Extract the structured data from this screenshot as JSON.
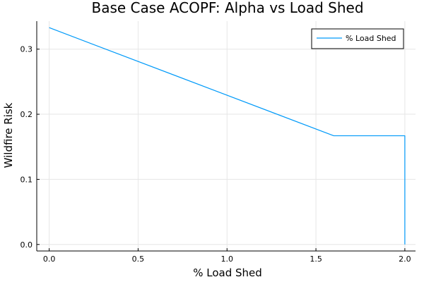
{
  "chart_data": {
    "type": "line",
    "title": "Base Case ACOPF: Alpha vs Load Shed",
    "xlabel": "% Load Shed",
    "ylabel": "Wildfire Risk",
    "xlim": [
      -0.07,
      2.06
    ],
    "ylim": [
      -0.01,
      0.343
    ],
    "xticks": [
      0.0,
      0.5,
      1.0,
      1.5,
      2.0
    ],
    "xtick_labels": [
      "0.0",
      "0.5",
      "1.0",
      "1.5",
      "2.0"
    ],
    "yticks": [
      0.0,
      0.1,
      0.2,
      0.3
    ],
    "ytick_labels": [
      "0.0",
      "0.1",
      "0.2",
      "0.3"
    ],
    "grid": true,
    "legend_position": "top-right",
    "series": [
      {
        "name": "% Load Shed",
        "color": "#009af9",
        "x": [
          0.0,
          1.6,
          2.0,
          2.0
        ],
        "y": [
          0.333,
          0.167,
          0.167,
          0.0
        ]
      }
    ]
  }
}
